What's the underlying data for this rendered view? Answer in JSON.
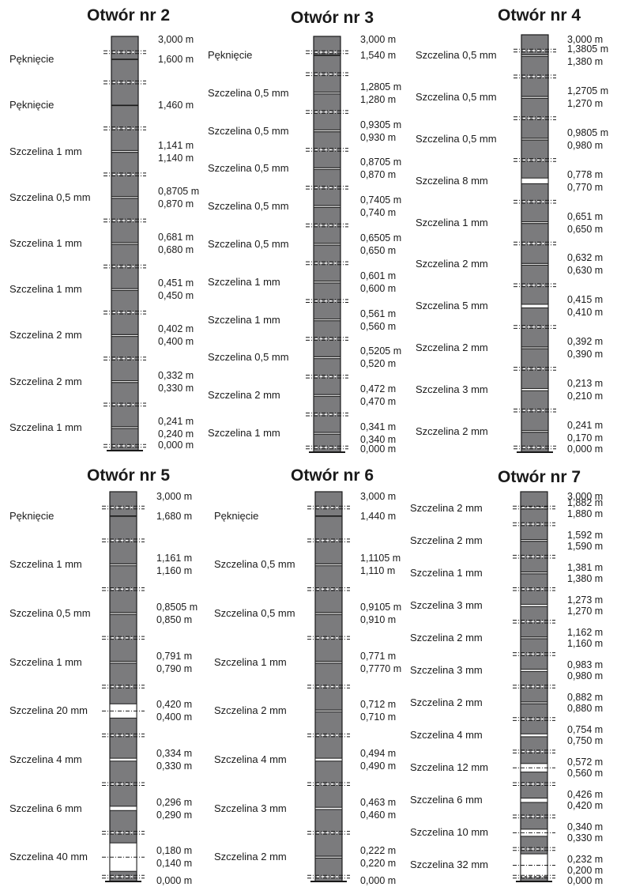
{
  "boreholes": [
    {
      "title": "Otwór nr 2",
      "features": [
        {
          "label": "Pęknięcie",
          "aperture_mm": 0
        },
        {
          "label": "Pęknięcie",
          "aperture_mm": 0
        },
        {
          "label": "Szczelina 1 mm",
          "aperture_mm": 1
        },
        {
          "label": "Szczelina 0,5 mm",
          "aperture_mm": 0.5
        },
        {
          "label": "Szczelina 1 mm",
          "aperture_mm": 1
        },
        {
          "label": "Szczelina 1 mm",
          "aperture_mm": 1
        },
        {
          "label": "Szczelina 2 mm",
          "aperture_mm": 2
        },
        {
          "label": "Szczelina 2 mm",
          "aperture_mm": 2
        },
        {
          "label": "Szczelina 1 mm",
          "aperture_mm": 1
        }
      ],
      "depths": [
        "3,000 m",
        "1,600 m",
        "1,460 m",
        "1,141 m",
        "1,140 m",
        "0,8705 m",
        "0,870 m",
        "0,681 m",
        "0,680 m",
        "0,451 m",
        "0,450 m",
        "0,402 m",
        "0,400 m",
        "0,332 m",
        "0,330 m",
        "0,241 m",
        "0,240 m",
        "0,000 m"
      ]
    },
    {
      "title": "Otwór nr 3",
      "features": [
        {
          "label": "Pęknięcie",
          "aperture_mm": 0
        },
        {
          "label": "Szczelina 0,5 mm",
          "aperture_mm": 0.5
        },
        {
          "label": "Szczelina 0,5 mm",
          "aperture_mm": 0.5
        },
        {
          "label": "Szczelina 0,5 mm",
          "aperture_mm": 0.5
        },
        {
          "label": "Szczelina 0,5 mm",
          "aperture_mm": 0.5
        },
        {
          "label": "Szczelina 0,5 mm",
          "aperture_mm": 0.5
        },
        {
          "label": "Szczelina 1 mm",
          "aperture_mm": 1
        },
        {
          "label": "Szczelina 1 mm",
          "aperture_mm": 1
        },
        {
          "label": "Szczelina 0,5 mm",
          "aperture_mm": 0.5
        },
        {
          "label": "Szczelina 2 mm",
          "aperture_mm": 2
        },
        {
          "label": "Szczelina 1 mm",
          "aperture_mm": 1
        }
      ],
      "depths": [
        "3,000 m",
        "1,540 m",
        "1,2805 m",
        "1,280 m",
        "0,9305 m",
        "0,930 m",
        "0,8705 m",
        "0,870 m",
        "0,7405 m",
        "0,740 m",
        "0,6505 m",
        "0,650 m",
        "0,601 m",
        "0,600 m",
        "0,561 m",
        "0,560 m",
        "0,5205 m",
        "0,520 m",
        "0,472 m",
        "0,470 m",
        "0,341 m",
        "0,340 m",
        "0,000 m"
      ]
    },
    {
      "title": "Otwór nr 4",
      "features": [
        {
          "label": "Szczelina 0,5 mm",
          "aperture_mm": 0.5
        },
        {
          "label": "Szczelina 0,5 mm",
          "aperture_mm": 0.5
        },
        {
          "label": "Szczelina 0,5 mm",
          "aperture_mm": 0.5
        },
        {
          "label": "Szczelina 8 mm",
          "aperture_mm": 8
        },
        {
          "label": "Szczelina 1 mm",
          "aperture_mm": 1
        },
        {
          "label": "Szczelina 2 mm",
          "aperture_mm": 2
        },
        {
          "label": "Szczelina 5 mm",
          "aperture_mm": 5
        },
        {
          "label": "Szczelina 2 mm",
          "aperture_mm": 2
        },
        {
          "label": "Szczelina 3 mm",
          "aperture_mm": 3
        },
        {
          "label": "Szczelina 2 mm",
          "aperture_mm": 2
        }
      ],
      "depths": [
        "3,000 m",
        "1,3805 m",
        "1,380 m",
        "1,2705 m",
        "1,270 m",
        "0,9805 m",
        "0,980 m",
        "0,778 m",
        "0,770 m",
        "0,651 m",
        "0,650 m",
        "0,632 m",
        "0,630 m",
        "0,415 m",
        "0,410 m",
        "0,392 m",
        "0,390 m",
        "0,213 m",
        "0,210 m",
        "0,241 m",
        "0,170 m",
        "0,000 m"
      ]
    },
    {
      "title": "Otwór nr 5",
      "features": [
        {
          "label": "Pęknięcie",
          "aperture_mm": 0
        },
        {
          "label": "Szczelina 1 mm",
          "aperture_mm": 1
        },
        {
          "label": "Szczelina 0,5 mm",
          "aperture_mm": 0.5
        },
        {
          "label": "Szczelina 1 mm",
          "aperture_mm": 1
        },
        {
          "label": "Szczelina 20 mm",
          "aperture_mm": 20
        },
        {
          "label": "Szczelina 4 mm",
          "aperture_mm": 4
        },
        {
          "label": "Szczelina 6 mm",
          "aperture_mm": 6
        },
        {
          "label": "Szczelina 40 mm",
          "aperture_mm": 40
        }
      ],
      "depths": [
        "3,000 m",
        "1,680 m",
        "1,161 m",
        "1,160 m",
        "0,8505 m",
        "0,850 m",
        "0,791 m",
        "0,790 m",
        "0,420 m",
        "0,400 m",
        "0,334 m",
        "0,330 m",
        "0,296 m",
        "0,290 m",
        "0,180 m",
        "0,140 m",
        "0,000 m"
      ]
    },
    {
      "title": "Otwór nr 6",
      "features": [
        {
          "label": "Pęknięcie",
          "aperture_mm": 0
        },
        {
          "label": "Szczelina 0,5 mm",
          "aperture_mm": 0.5
        },
        {
          "label": "Szczelina 0,5 mm",
          "aperture_mm": 0.5
        },
        {
          "label": "Szczelina 1 mm",
          "aperture_mm": 1
        },
        {
          "label": "Szczelina 2 mm",
          "aperture_mm": 2
        },
        {
          "label": "Szczelina 4 mm",
          "aperture_mm": 4
        },
        {
          "label": "Szczelina 3 mm",
          "aperture_mm": 3
        },
        {
          "label": "Szczelina 2 mm",
          "aperture_mm": 2
        }
      ],
      "depths": [
        "3,000 m",
        "1,440 m",
        "1,1105 m",
        "1,110 m",
        "0,9105 m",
        "0,910 m",
        "0,771 m",
        "0,7770 m",
        "0,712 m",
        "0,710 m",
        "0,494 m",
        "0,490 m",
        "0,463 m",
        "0,460 m",
        "0,222 m",
        "0,220 m",
        "0,000 m"
      ]
    },
    {
      "title": "Otwór nr 7",
      "features": [
        {
          "label": "Szczelina 2 mm",
          "aperture_mm": 2
        },
        {
          "label": "Szczelina 2 mm",
          "aperture_mm": 2
        },
        {
          "label": "Szczelina 1 mm",
          "aperture_mm": 1
        },
        {
          "label": "Szczelina 3 mm",
          "aperture_mm": 3
        },
        {
          "label": "Szczelina 2 mm",
          "aperture_mm": 2
        },
        {
          "label": "Szczelina 3 mm",
          "aperture_mm": 3
        },
        {
          "label": "Szczelina 2 mm",
          "aperture_mm": 2
        },
        {
          "label": "Szczelina 4 mm",
          "aperture_mm": 4
        },
        {
          "label": "Szczelina 12 mm",
          "aperture_mm": 12
        },
        {
          "label": "Szczelina 6 mm",
          "aperture_mm": 6
        },
        {
          "label": "Szczelina 10 mm",
          "aperture_mm": 10
        },
        {
          "label": "Szczelina 32 mm",
          "aperture_mm": 32
        }
      ],
      "depths": [
        "3,000 m",
        "1,882 m",
        "1,880 m",
        "1,592 m",
        "1,590 m",
        "1,381 m",
        "1,380 m",
        "1,273 m",
        "1,270 m",
        "1,162 m",
        "1,160 m",
        "0,983 m",
        "0,980 m",
        "0,882 m",
        "0,880 m",
        "0,754 m",
        "0,750 m",
        "0,572 m",
        "0,560 m",
        "0,426 m",
        "0,420 m",
        "0,340 m",
        "0,330 m",
        "0,232 m",
        "0,200 m",
        "0,000 m"
      ]
    }
  ],
  "colors": {
    "core_fill": "#7b7b7d",
    "core_outline": "#1a1a1a",
    "gap_fill": "#ffffff",
    "packer_marker": "#1a1a1a",
    "text": "#1a1a1a"
  }
}
